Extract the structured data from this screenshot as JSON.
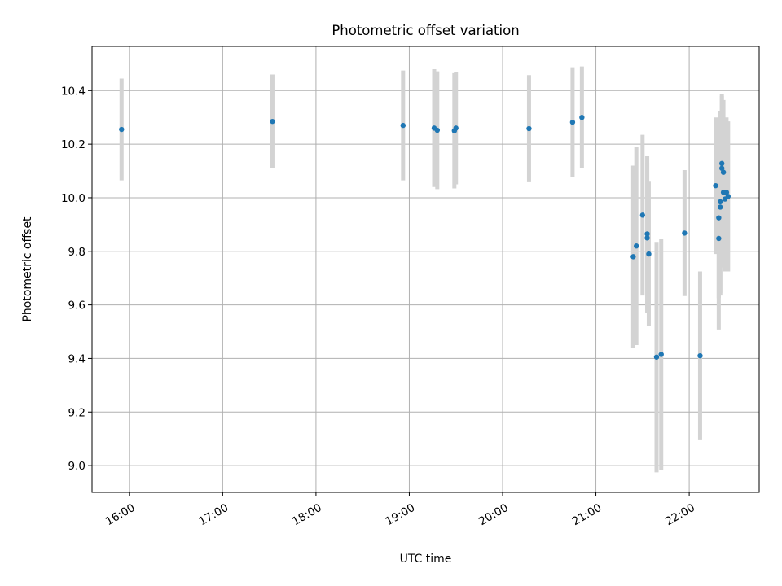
{
  "chart_data": {
    "type": "scatter",
    "title": "Photometric offset variation",
    "xlabel": "UTC time",
    "ylabel": "Photometric offset",
    "xlim": [
      "15:36",
      "22:45"
    ],
    "ylim": [
      8.9,
      10.565
    ],
    "xticks": [
      "16:00",
      "17:00",
      "18:00",
      "19:00",
      "20:00",
      "21:00",
      "22:00"
    ],
    "yticks": [
      "9.0",
      "9.2",
      "9.4",
      "9.6",
      "9.8",
      "10.0",
      "10.2",
      "10.4"
    ],
    "grid": true,
    "colors": {
      "point": "#1f77b4",
      "errorbar": "#d3d3d3",
      "grid": "#b0b0b0"
    },
    "points": [
      {
        "x": "15:55",
        "y": 10.255,
        "err": 0.19
      },
      {
        "x": "17:32",
        "y": 10.285,
        "err": 0.175
      },
      {
        "x": "18:56",
        "y": 10.27,
        "err": 0.205
      },
      {
        "x": "19:16",
        "y": 10.26,
        "err": 0.22
      },
      {
        "x": "19:18",
        "y": 10.252,
        "err": 0.22
      },
      {
        "x": "19:29",
        "y": 10.25,
        "err": 0.215
      },
      {
        "x": "19:30",
        "y": 10.26,
        "err": 0.21
      },
      {
        "x": "20:17",
        "y": 10.258,
        "err": 0.2
      },
      {
        "x": "20:45",
        "y": 10.282,
        "err": 0.205
      },
      {
        "x": "20:51",
        "y": 10.3,
        "err": 0.19
      },
      {
        "x": "21:24",
        "y": 9.78,
        "err": 0.34
      },
      {
        "x": "21:26",
        "y": 9.82,
        "err": 0.37
      },
      {
        "x": "21:30",
        "y": 9.935,
        "err": 0.3
      },
      {
        "x": "21:33",
        "y": 9.865,
        "err": 0.29
      },
      {
        "x": "21:33",
        "y": 9.85,
        "err": 0.28
      },
      {
        "x": "21:34",
        "y": 9.79,
        "err": 0.27
      },
      {
        "x": "21:39",
        "y": 9.405,
        "err": 0.43
      },
      {
        "x": "21:42",
        "y": 9.415,
        "err": 0.43
      },
      {
        "x": "21:57",
        "y": 9.868,
        "err": 0.235
      },
      {
        "x": "22:07",
        "y": 9.41,
        "err": 0.315
      },
      {
        "x": "22:17",
        "y": 10.045,
        "err": 0.255
      },
      {
        "x": "22:19",
        "y": 9.925,
        "err": 0.3
      },
      {
        "x": "22:19",
        "y": 9.848,
        "err": 0.34
      },
      {
        "x": "22:20",
        "y": 9.985,
        "err": 0.34
      },
      {
        "x": "22:20",
        "y": 9.965,
        "err": 0.33
      },
      {
        "x": "22:21",
        "y": 10.128,
        "err": 0.26
      },
      {
        "x": "22:21",
        "y": 10.11,
        "err": 0.27
      },
      {
        "x": "22:22",
        "y": 10.095,
        "err": 0.27
      },
      {
        "x": "22:22",
        "y": 10.02,
        "err": 0.28
      },
      {
        "x": "22:23",
        "y": 9.995,
        "err": 0.27
      },
      {
        "x": "22:24",
        "y": 10.02,
        "err": 0.28
      },
      {
        "x": "22:25",
        "y": 10.005,
        "err": 0.28
      }
    ]
  }
}
